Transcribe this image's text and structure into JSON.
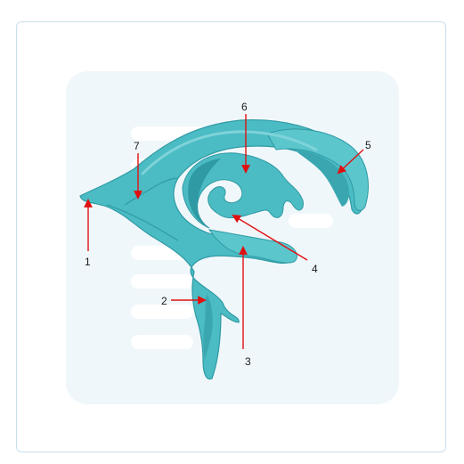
{
  "diagram": {
    "labels": [
      {
        "id": "1",
        "text": "1"
      },
      {
        "id": "2",
        "text": "2"
      },
      {
        "id": "3",
        "text": "3"
      },
      {
        "id": "4",
        "text": "4"
      },
      {
        "id": "5",
        "text": "5"
      },
      {
        "id": "6",
        "text": "6"
      },
      {
        "id": "7",
        "text": "7"
      }
    ],
    "colors": {
      "body": "#4bbcc4",
      "body_dark": "#2f9aa3",
      "body_light": "#7fd3d8",
      "arrow": "#e01010"
    }
  }
}
